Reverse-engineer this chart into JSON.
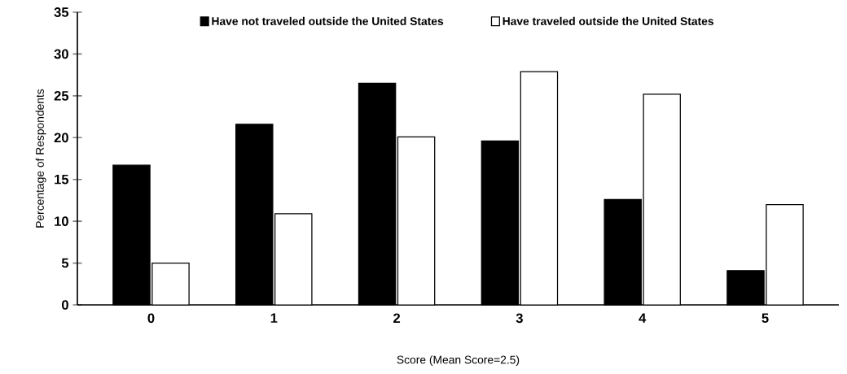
{
  "chart_data": {
    "type": "bar",
    "xlabel": "Score (Mean Score=2.5)",
    "ylabel": "Percentage of Respondents",
    "categories": [
      "0",
      "1",
      "2",
      "3",
      "4",
      "5"
    ],
    "series": [
      {
        "name": "Have not traveled outside the United States",
        "color": "#000000",
        "values": [
          16.7,
          21.6,
          26.5,
          19.6,
          12.6,
          4.1
        ]
      },
      {
        "name": "Have traveled outside the United States",
        "color": "#ffffff",
        "values": [
          5.0,
          10.9,
          20.1,
          27.9,
          25.2,
          12.0
        ]
      }
    ],
    "ylim": [
      0,
      35
    ],
    "yticks": [
      0,
      5,
      10,
      15,
      20,
      25,
      30,
      35
    ],
    "legend": "top",
    "grid": false
  }
}
